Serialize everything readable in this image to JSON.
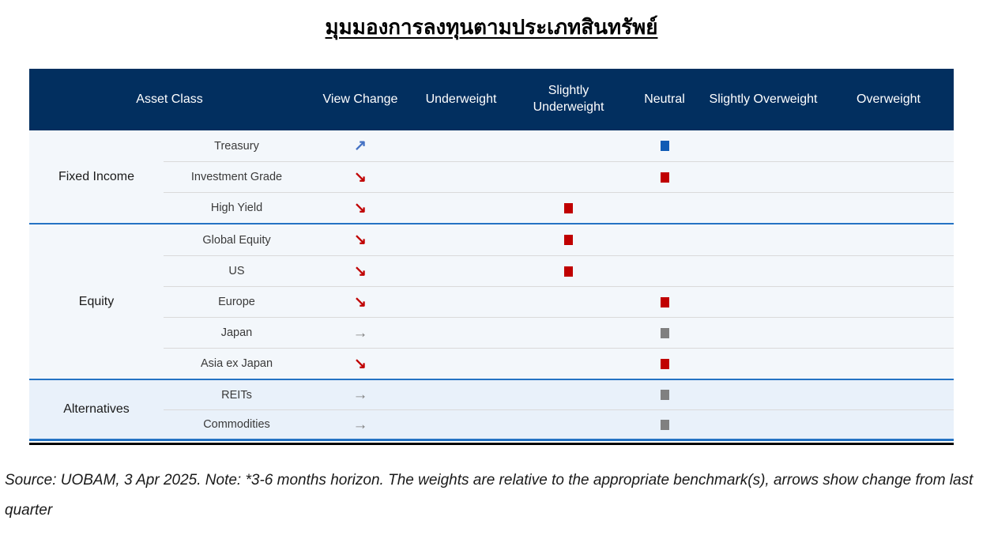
{
  "title": "มุมมองการลงทุนตามประเภทสินทรัพย์",
  "table": {
    "header": {
      "asset_class": "Asset Class",
      "view_change": "View Change",
      "columns": [
        "Underweight",
        "Slightly Underweight",
        "Neutral",
        "Slightly Overweight",
        "Overweight"
      ]
    },
    "groups": [
      {
        "name": "Fixed Income",
        "tint": "normal",
        "rows": [
          {
            "asset": "Treasury",
            "view_change": "up",
            "view": "Neutral",
            "color": "blue"
          },
          {
            "asset": "Investment Grade",
            "view_change": "down",
            "view": "Neutral",
            "color": "red"
          },
          {
            "asset": "High Yield",
            "view_change": "down",
            "view": "Slightly Underweight",
            "color": "red"
          }
        ]
      },
      {
        "name": "Equity",
        "tint": "normal",
        "rows": [
          {
            "asset": "Global Equity",
            "view_change": "down",
            "view": "Slightly Underweight",
            "color": "red"
          },
          {
            "asset": "US",
            "view_change": "down",
            "view": "Slightly Underweight",
            "color": "red"
          },
          {
            "asset": "Europe",
            "view_change": "down",
            "view": "Neutral",
            "color": "red"
          },
          {
            "asset": "Japan",
            "view_change": "unchanged",
            "view": "Neutral",
            "color": "gray"
          },
          {
            "asset": "Asia ex Japan",
            "view_change": "down",
            "view": "Neutral",
            "color": "red"
          }
        ]
      },
      {
        "name": "Alternatives",
        "tint": "alt",
        "rows": [
          {
            "asset": "REITs",
            "view_change": "unchanged",
            "view": "Neutral",
            "color": "gray"
          },
          {
            "asset": "Commodities",
            "view_change": "unchanged",
            "view": "Neutral",
            "color": "gray"
          }
        ]
      }
    ]
  },
  "arrows": {
    "up": "↗",
    "down": "↘",
    "unchanged": "→"
  },
  "colors": {
    "header_bg": "#022F5F",
    "header_text": "#FFFFFF",
    "group_bg": "#F3F7FB",
    "group_bg_alt": "#E9F1FA",
    "divider_blue": "#2573C4",
    "row_separator": "#DADADA",
    "bottom_bar": "#000000",
    "markers": {
      "red": {
        "arrow": "#C00000",
        "square": "#C00000"
      },
      "blue": {
        "arrow": "#4472C4",
        "square": "#0F5BB5"
      },
      "gray": {
        "arrow": "#808080",
        "square": "#808080"
      }
    }
  },
  "footnote": "Source: UOBAM, 3 Apr 2025. Note: *3-6 months horizon. The weights are relative to the appropriate benchmark(s), arrows show change from last quarter"
}
